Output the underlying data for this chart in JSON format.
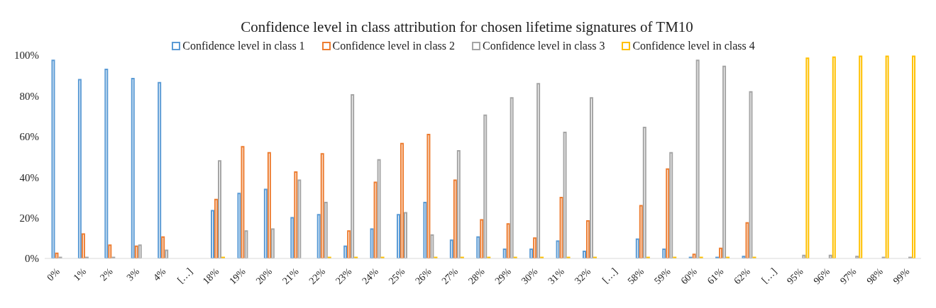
{
  "chart_data": {
    "type": "bar",
    "title": "Confidence level in class attribution for chosen lifetime signatures of TM10",
    "categories": [
      "0%",
      "1%",
      "2%",
      "3%",
      "4%",
      "[…]",
      "18%",
      "19%",
      "20%",
      "21%",
      "22%",
      "23%",
      "24%",
      "25%",
      "26%",
      "27%",
      "28%",
      "29%",
      "30%",
      "31%",
      "32%",
      "[…]",
      "58%",
      "59%",
      "60%",
      "61%",
      "62%",
      "[…]",
      "95%",
      "96%",
      "97%",
      "98%",
      "99%"
    ],
    "series": [
      {
        "name": "Confidence level in class 1",
        "color": "#5b9bd5",
        "values": [
          97.5,
          88,
          93,
          88.5,
          86.5,
          null,
          23.5,
          32,
          34,
          20,
          21.5,
          6,
          14.5,
          21.5,
          27.5,
          9,
          10.5,
          4.5,
          4.5,
          8.5,
          3.5,
          null,
          9.5,
          4.5,
          0.5,
          0.5,
          1,
          null,
          0,
          0,
          0,
          0,
          0
        ]
      },
      {
        "name": "Confidence level in class 2",
        "color": "#ed7d31",
        "values": [
          2.5,
          12,
          6.5,
          6,
          10.5,
          null,
          29,
          55,
          52,
          42.5,
          51.5,
          13.5,
          37.5,
          56.5,
          61,
          38.5,
          19,
          17,
          10,
          30,
          18.5,
          null,
          26,
          44,
          2,
          5,
          17.5,
          null,
          0,
          0,
          0,
          0,
          0
        ]
      },
      {
        "name": "Confidence level in class 3",
        "color": "#a5a5a5",
        "values": [
          0.5,
          0.5,
          0.5,
          6.5,
          4,
          null,
          48,
          13.5,
          14.5,
          38.5,
          27.5,
          80.5,
          48.5,
          22.5,
          11.5,
          53,
          70.5,
          79,
          86,
          62,
          79,
          null,
          64.5,
          52,
          97.5,
          94.5,
          82,
          null,
          1.5,
          1.5,
          1,
          0.5,
          0.5
        ]
      },
      {
        "name": "Confidence level in class 4",
        "color": "#ffc000",
        "values": [
          0,
          0,
          0,
          0,
          0,
          null,
          0.5,
          0,
          0,
          0,
          0.5,
          0.5,
          0.5,
          0,
          0.5,
          0.5,
          0.5,
          0.5,
          0.5,
          0.5,
          0.5,
          null,
          0.5,
          0.5,
          0.5,
          0.5,
          0.5,
          null,
          98.5,
          99,
          99.5,
          99.5,
          99.5
        ]
      }
    ],
    "ylim": [
      0,
      100
    ],
    "yticks": [
      {
        "value": 0,
        "label": "0%"
      },
      {
        "value": 20,
        "label": "20%"
      },
      {
        "value": 40,
        "label": "40%"
      },
      {
        "value": 60,
        "label": "60%"
      },
      {
        "value": 80,
        "label": "80%"
      },
      {
        "value": 100,
        "label": "100%"
      }
    ],
    "grid": false,
    "legend": "top"
  }
}
